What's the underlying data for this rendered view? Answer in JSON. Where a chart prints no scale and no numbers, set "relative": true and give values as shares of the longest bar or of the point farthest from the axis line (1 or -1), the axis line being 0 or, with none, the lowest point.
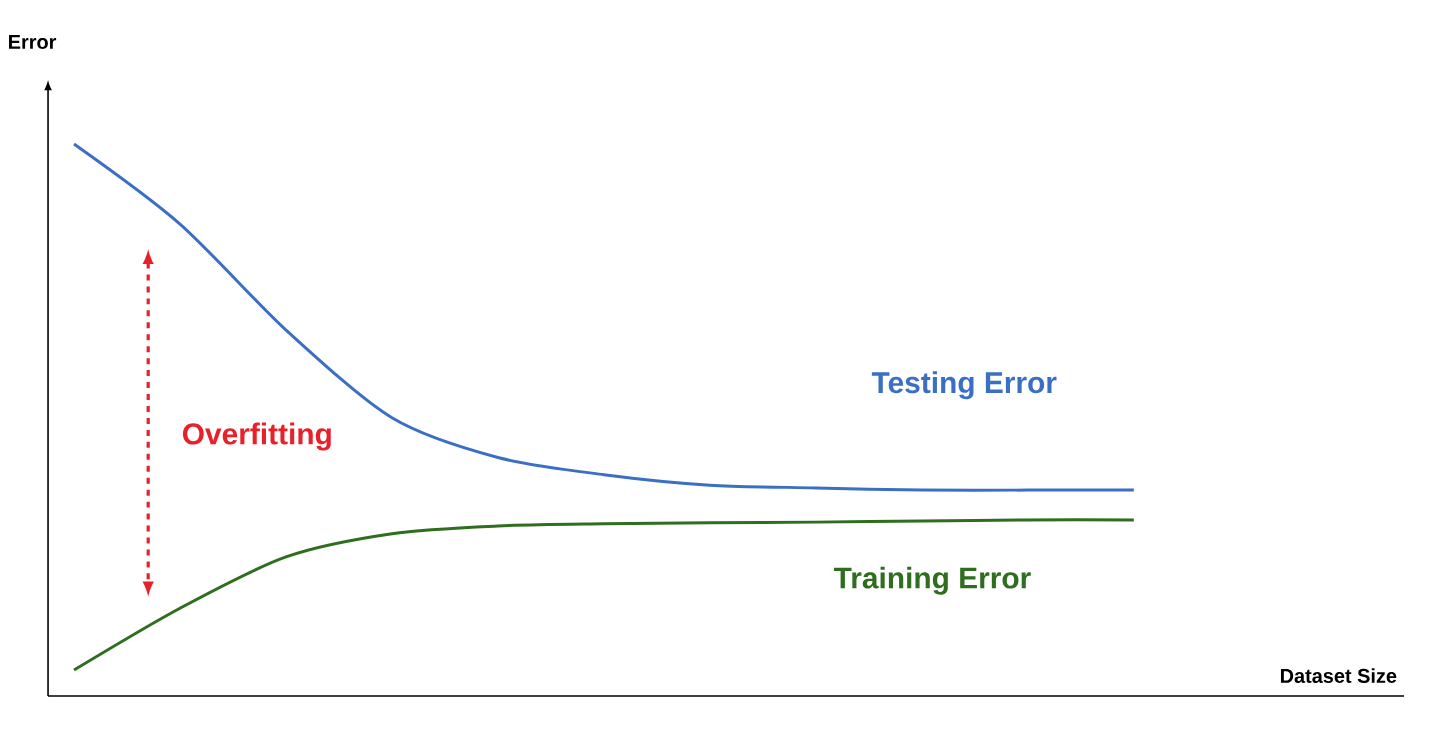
{
  "chart_data": {
    "type": "line",
    "relative": true,
    "xlabel": "Dataset Size",
    "ylabel": "Error",
    "categories": [
      null,
      null,
      null,
      null,
      null,
      null,
      null,
      null,
      null,
      null,
      null
    ],
    "series": [
      {
        "name": "Testing Error",
        "color": "#3a6fc4",
        "values": [
          1.0,
          0.855,
          0.663,
          0.504,
          0.432,
          0.401,
          0.382,
          0.377,
          0.373,
          0.373,
          0.373
        ]
      },
      {
        "name": "Training Error",
        "color": "#2e6e1e",
        "values": [
          0.047,
          0.159,
          0.252,
          0.294,
          0.308,
          0.312,
          0.314,
          0.315,
          0.317,
          0.319,
          0.319
        ]
      }
    ],
    "annotations": [
      "Overfitting"
    ],
    "marker": "none",
    "line_style": "solid"
  }
}
